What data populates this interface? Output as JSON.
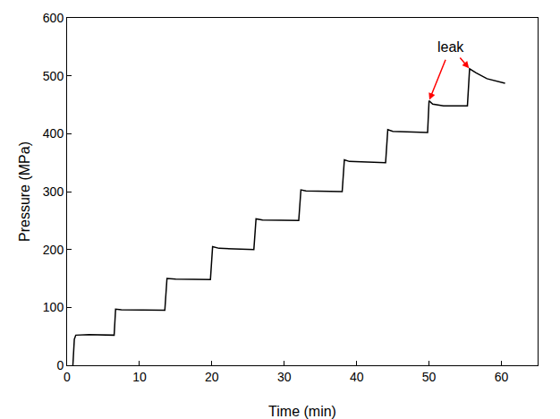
{
  "chart_data": {
    "type": "line",
    "x": [
      0.8,
      1.0,
      1.2,
      3.0,
      6.5,
      6.7,
      7.5,
      13.5,
      13.8,
      15.0,
      19.8,
      20.1,
      21.0,
      25.8,
      26.1,
      27.0,
      32.0,
      32.3,
      33.0,
      38.0,
      38.3,
      39.0,
      44.0,
      44.3,
      45.0,
      49.8,
      50.0,
      50.5,
      52.0,
      55.3,
      55.6,
      56.5,
      58.0,
      60.5
    ],
    "values": [
      0,
      45,
      52,
      53,
      52,
      97,
      96,
      95,
      150,
      149,
      148,
      205,
      202,
      200,
      253,
      251,
      250,
      303,
      301,
      300,
      355,
      352,
      350,
      407,
      404,
      402,
      457,
      451,
      448,
      448,
      512,
      505,
      495,
      487
    ],
    "color": "#000000",
    "xlabel": "Time (min)",
    "ylabel": "Pressure (MPa)",
    "xlim": [
      0,
      65
    ],
    "ylim": [
      0,
      600
    ],
    "xticks": [
      0,
      10,
      20,
      30,
      40,
      50,
      60
    ],
    "yticks": [
      0,
      100,
      200,
      300,
      400,
      500,
      600
    ],
    "grid": false,
    "annotations": [
      {
        "text": "leak",
        "x": 53,
        "y": 550,
        "color": "#ff0000",
        "arrows": [
          [
            50.0,
            457
          ],
          [
            55.6,
            512
          ]
        ]
      }
    ]
  }
}
